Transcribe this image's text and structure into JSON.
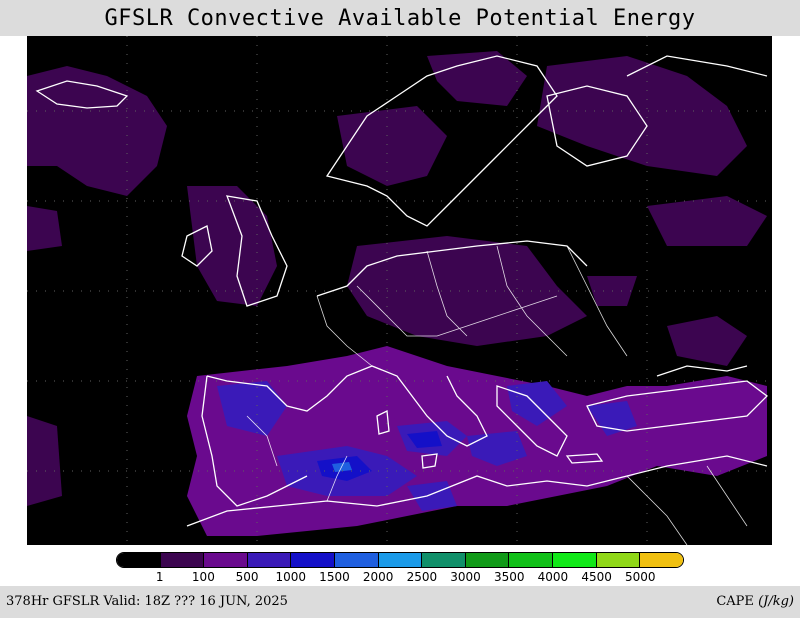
{
  "title": "GFSLR Convective Available Potential Energy",
  "footer": {
    "valid_text": "378Hr GFSLR Valid: 18Z ??? 16 JUN, 2025",
    "variable": "CAPE",
    "units": "(J/kg)"
  },
  "legend": {
    "colors": [
      "#000000",
      "#3c0550",
      "#6a0a8e",
      "#3a1ab8",
      "#1410c8",
      "#1f5fe0",
      "#1a9ae8",
      "#10906a",
      "#109a18",
      "#10c018",
      "#10e818",
      "#90d818",
      "#f0c010"
    ],
    "labels": [
      "1",
      "100",
      "500",
      "1000",
      "1500",
      "2000",
      "2500",
      "3000",
      "3500",
      "4000",
      "4500",
      "5000"
    ]
  },
  "map": {
    "region": "Europe",
    "colors": {
      "background": "#000000",
      "cape_low": "#3c0550",
      "cape_100": "#6a0a8e",
      "cape_500": "#3a1ab8",
      "cape_1000": "#1410c8",
      "cape_1500": "#1f5fe0",
      "coastline": "#ffffff",
      "grid": "#606060"
    }
  }
}
